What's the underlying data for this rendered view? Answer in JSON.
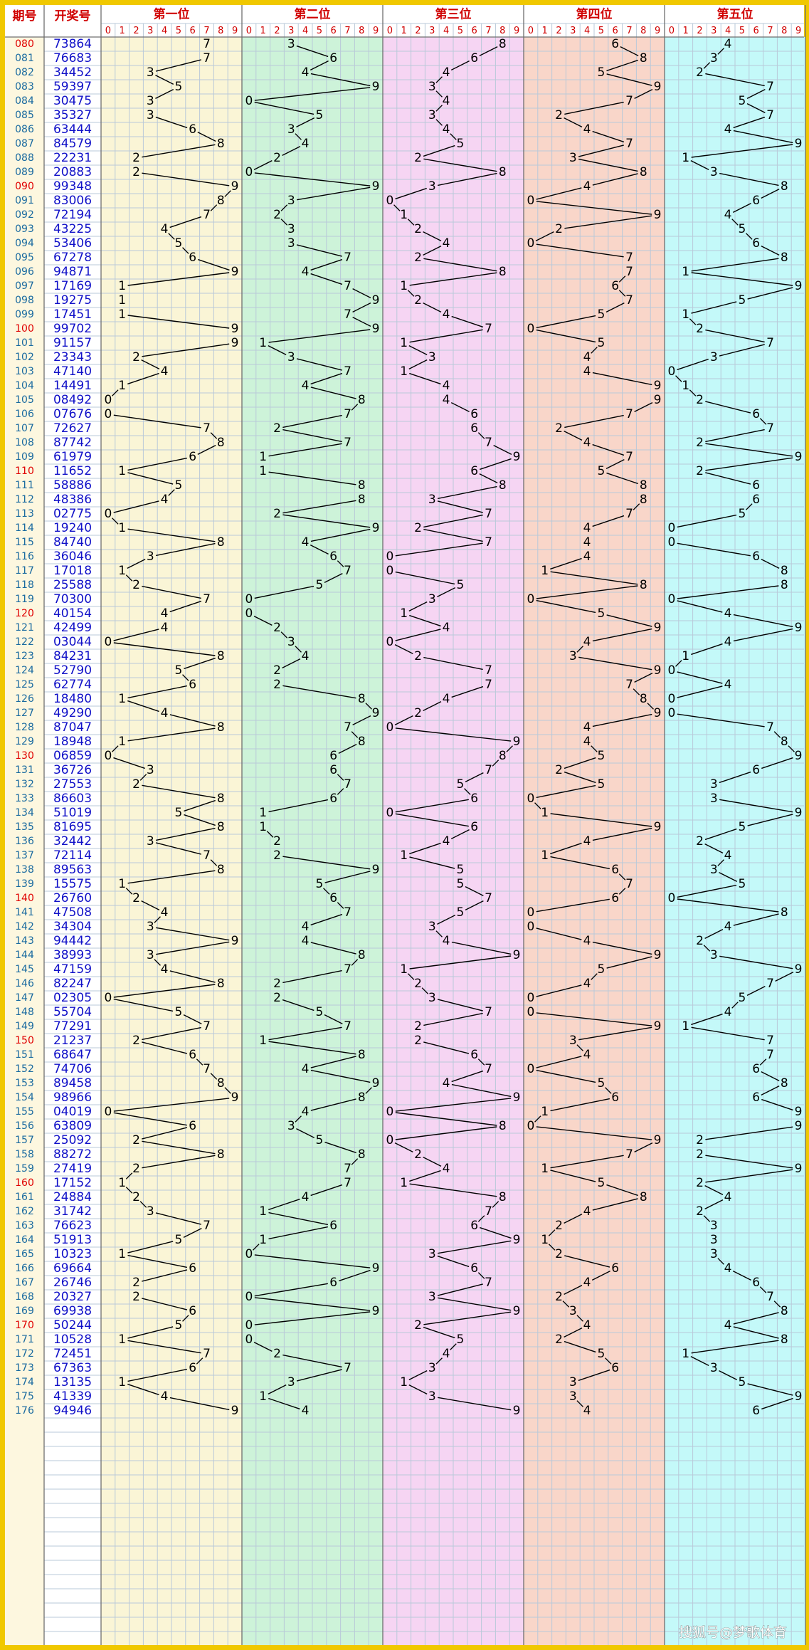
{
  "header": {
    "issue": "期号",
    "number": "开奖号",
    "panels": [
      "第一位",
      "第二位",
      "第三位",
      "第四位",
      "第五位"
    ],
    "digits": [
      0,
      1,
      2,
      3,
      4,
      5,
      6,
      7,
      8,
      9
    ]
  },
  "panel_colors": [
    "#faf5d6",
    "#cdf3d9",
    "#f6d5f3",
    "#f9d6c9",
    "#c4f9f9"
  ],
  "line_color": "#000000",
  "number_color": "#1010c8",
  "highlight_color": "#e00000",
  "rows": [
    {
      "issue": "080",
      "number": "73864",
      "digits": [
        7,
        3,
        8,
        6,
        4
      ]
    },
    {
      "issue": "081",
      "number": "76683",
      "digits": [
        7,
        6,
        6,
        8,
        3
      ]
    },
    {
      "issue": "082",
      "number": "34452",
      "digits": [
        3,
        4,
        4,
        5,
        2
      ]
    },
    {
      "issue": "083",
      "number": "59397",
      "digits": [
        5,
        9,
        3,
        9,
        7
      ]
    },
    {
      "issue": "084",
      "number": "30475",
      "digits": [
        3,
        0,
        4,
        7,
        5
      ]
    },
    {
      "issue": "085",
      "number": "35327",
      "digits": [
        3,
        5,
        3,
        2,
        7
      ]
    },
    {
      "issue": "086",
      "number": "63444",
      "digits": [
        6,
        3,
        4,
        4,
        4
      ]
    },
    {
      "issue": "087",
      "number": "84579",
      "digits": [
        8,
        4,
        5,
        7,
        9
      ]
    },
    {
      "issue": "088",
      "number": "22231",
      "digits": [
        2,
        2,
        2,
        3,
        1
      ]
    },
    {
      "issue": "089",
      "number": "20883",
      "digits": [
        2,
        0,
        8,
        8,
        3
      ]
    },
    {
      "issue": "090",
      "number": "99348",
      "digits": [
        9,
        9,
        3,
        4,
        8
      ]
    },
    {
      "issue": "091",
      "number": "83006",
      "digits": [
        8,
        3,
        0,
        0,
        6
      ]
    },
    {
      "issue": "092",
      "number": "72194",
      "digits": [
        7,
        2,
        1,
        9,
        4
      ]
    },
    {
      "issue": "093",
      "number": "43225",
      "digits": [
        4,
        3,
        2,
        2,
        5
      ]
    },
    {
      "issue": "094",
      "number": "53406",
      "digits": [
        5,
        3,
        4,
        0,
        6
      ]
    },
    {
      "issue": "095",
      "number": "67278",
      "digits": [
        6,
        7,
        2,
        7,
        8
      ]
    },
    {
      "issue": "096",
      "number": "94871",
      "digits": [
        9,
        4,
        8,
        7,
        1
      ]
    },
    {
      "issue": "097",
      "number": "17169",
      "digits": [
        1,
        7,
        1,
        6,
        9
      ]
    },
    {
      "issue": "098",
      "number": "19275",
      "digits": [
        1,
        9,
        2,
        7,
        5
      ]
    },
    {
      "issue": "099",
      "number": "17451",
      "digits": [
        1,
        7,
        4,
        5,
        1
      ]
    },
    {
      "issue": "100",
      "number": "99702",
      "digits": [
        9,
        9,
        7,
        0,
        2
      ]
    },
    {
      "issue": "101",
      "number": "91157",
      "digits": [
        9,
        1,
        1,
        5,
        7
      ]
    },
    {
      "issue": "102",
      "number": "23343",
      "digits": [
        2,
        3,
        3,
        4,
        3
      ]
    },
    {
      "issue": "103",
      "number": "47140",
      "digits": [
        4,
        7,
        1,
        4,
        0
      ]
    },
    {
      "issue": "104",
      "number": "14491",
      "digits": [
        1,
        4,
        4,
        9,
        1
      ]
    },
    {
      "issue": "105",
      "number": "08492",
      "digits": [
        0,
        8,
        4,
        9,
        2
      ]
    },
    {
      "issue": "106",
      "number": "07676",
      "digits": [
        0,
        7,
        6,
        7,
        6
      ]
    },
    {
      "issue": "107",
      "number": "72627",
      "digits": [
        7,
        2,
        6,
        2,
        7
      ]
    },
    {
      "issue": "108",
      "number": "87742",
      "digits": [
        8,
        7,
        7,
        4,
        2
      ]
    },
    {
      "issue": "109",
      "number": "61979",
      "digits": [
        6,
        1,
        9,
        7,
        9
      ]
    },
    {
      "issue": "110",
      "number": "11652",
      "digits": [
        1,
        1,
        6,
        5,
        2
      ]
    },
    {
      "issue": "111",
      "number": "58886",
      "digits": [
        5,
        8,
        8,
        8,
        6
      ]
    },
    {
      "issue": "112",
      "number": "48386",
      "digits": [
        4,
        8,
        3,
        8,
        6
      ]
    },
    {
      "issue": "113",
      "number": "02775",
      "digits": [
        0,
        2,
        7,
        7,
        5
      ]
    },
    {
      "issue": "114",
      "number": "19240",
      "digits": [
        1,
        9,
        2,
        4,
        0
      ]
    },
    {
      "issue": "115",
      "number": "84740",
      "digits": [
        8,
        4,
        7,
        4,
        0
      ]
    },
    {
      "issue": "116",
      "number": "36046",
      "digits": [
        3,
        6,
        0,
        4,
        6
      ]
    },
    {
      "issue": "117",
      "number": "17018",
      "digits": [
        1,
        7,
        0,
        1,
        8
      ]
    },
    {
      "issue": "118",
      "number": "25588",
      "digits": [
        2,
        5,
        5,
        8,
        8
      ]
    },
    {
      "issue": "119",
      "number": "70300",
      "digits": [
        7,
        0,
        3,
        0,
        0
      ]
    },
    {
      "issue": "120",
      "number": "40154",
      "digits": [
        4,
        0,
        1,
        5,
        4
      ]
    },
    {
      "issue": "121",
      "number": "42499",
      "digits": [
        4,
        2,
        4,
        9,
        9
      ]
    },
    {
      "issue": "122",
      "number": "03044",
      "digits": [
        0,
        3,
        0,
        4,
        4
      ]
    },
    {
      "issue": "123",
      "number": "84231",
      "digits": [
        8,
        4,
        2,
        3,
        1
      ]
    },
    {
      "issue": "124",
      "number": "52790",
      "digits": [
        5,
        2,
        7,
        9,
        0
      ]
    },
    {
      "issue": "125",
      "number": "62774",
      "digits": [
        6,
        2,
        7,
        7,
        4
      ]
    },
    {
      "issue": "126",
      "number": "18480",
      "digits": [
        1,
        8,
        4,
        8,
        0
      ]
    },
    {
      "issue": "127",
      "number": "49290",
      "digits": [
        4,
        9,
        2,
        9,
        0
      ]
    },
    {
      "issue": "128",
      "number": "87047",
      "digits": [
        8,
        7,
        0,
        4,
        7
      ]
    },
    {
      "issue": "129",
      "number": "18948",
      "digits": [
        1,
        8,
        9,
        4,
        8
      ]
    },
    {
      "issue": "130",
      "number": "06859",
      "digits": [
        0,
        6,
        8,
        5,
        9
      ]
    },
    {
      "issue": "131",
      "number": "36726",
      "digits": [
        3,
        6,
        7,
        2,
        6
      ]
    },
    {
      "issue": "132",
      "number": "27553",
      "digits": [
        2,
        7,
        5,
        5,
        3
      ]
    },
    {
      "issue": "133",
      "number": "86603",
      "digits": [
        8,
        6,
        6,
        0,
        3
      ]
    },
    {
      "issue": "134",
      "number": "51019",
      "digits": [
        5,
        1,
        0,
        1,
        9
      ]
    },
    {
      "issue": "135",
      "number": "81695",
      "digits": [
        8,
        1,
        6,
        9,
        5
      ]
    },
    {
      "issue": "136",
      "number": "32442",
      "digits": [
        3,
        2,
        4,
        4,
        2
      ]
    },
    {
      "issue": "137",
      "number": "72114",
      "digits": [
        7,
        2,
        1,
        1,
        4
      ]
    },
    {
      "issue": "138",
      "number": "89563",
      "digits": [
        8,
        9,
        5,
        6,
        3
      ]
    },
    {
      "issue": "139",
      "number": "15575",
      "digits": [
        1,
        5,
        5,
        7,
        5
      ]
    },
    {
      "issue": "140",
      "number": "26760",
      "digits": [
        2,
        6,
        7,
        6,
        0
      ]
    },
    {
      "issue": "141",
      "number": "47508",
      "digits": [
        4,
        7,
        5,
        0,
        8
      ]
    },
    {
      "issue": "142",
      "number": "34304",
      "digits": [
        3,
        4,
        3,
        0,
        4
      ]
    },
    {
      "issue": "143",
      "number": "94442",
      "digits": [
        9,
        4,
        4,
        4,
        2
      ]
    },
    {
      "issue": "144",
      "number": "38993",
      "digits": [
        3,
        8,
        9,
        9,
        3
      ]
    },
    {
      "issue": "145",
      "number": "47159",
      "digits": [
        4,
        7,
        1,
        5,
        9
      ]
    },
    {
      "issue": "146",
      "number": "82247",
      "digits": [
        8,
        2,
        2,
        4,
        7
      ]
    },
    {
      "issue": "147",
      "number": "02305",
      "digits": [
        0,
        2,
        3,
        0,
        5
      ]
    },
    {
      "issue": "148",
      "number": "55704",
      "digits": [
        5,
        5,
        7,
        0,
        4
      ]
    },
    {
      "issue": "149",
      "number": "77291",
      "digits": [
        7,
        7,
        2,
        9,
        1
      ]
    },
    {
      "issue": "150",
      "number": "21237",
      "digits": [
        2,
        1,
        2,
        3,
        7
      ]
    },
    {
      "issue": "151",
      "number": "68647",
      "digits": [
        6,
        8,
        6,
        4,
        7
      ]
    },
    {
      "issue": "152",
      "number": "74706",
      "digits": [
        7,
        4,
        7,
        0,
        6
      ]
    },
    {
      "issue": "153",
      "number": "89458",
      "digits": [
        8,
        9,
        4,
        5,
        8
      ]
    },
    {
      "issue": "154",
      "number": "98966",
      "digits": [
        9,
        8,
        9,
        6,
        6
      ]
    },
    {
      "issue": "155",
      "number": "04019",
      "digits": [
        0,
        4,
        0,
        1,
        9
      ]
    },
    {
      "issue": "156",
      "number": "63809",
      "digits": [
        6,
        3,
        8,
        0,
        9
      ]
    },
    {
      "issue": "157",
      "number": "25092",
      "digits": [
        2,
        5,
        0,
        9,
        2
      ]
    },
    {
      "issue": "158",
      "number": "88272",
      "digits": [
        8,
        8,
        2,
        7,
        2
      ]
    },
    {
      "issue": "159",
      "number": "27419",
      "digits": [
        2,
        7,
        4,
        1,
        9
      ]
    },
    {
      "issue": "160",
      "number": "17152",
      "digits": [
        1,
        7,
        1,
        5,
        2
      ]
    },
    {
      "issue": "161",
      "number": "24884",
      "digits": [
        2,
        4,
        8,
        8,
        4
      ]
    },
    {
      "issue": "162",
      "number": "31742",
      "digits": [
        3,
        1,
        7,
        4,
        2
      ]
    },
    {
      "issue": "163",
      "number": "76623",
      "digits": [
        7,
        6,
        6,
        2,
        3
      ]
    },
    {
      "issue": "164",
      "number": "51913",
      "digits": [
        5,
        1,
        9,
        1,
        3
      ]
    },
    {
      "issue": "165",
      "number": "10323",
      "digits": [
        1,
        0,
        3,
        2,
        3
      ]
    },
    {
      "issue": "166",
      "number": "69664",
      "digits": [
        6,
        9,
        6,
        6,
        4
      ]
    },
    {
      "issue": "167",
      "number": "26746",
      "digits": [
        2,
        6,
        7,
        4,
        6
      ]
    },
    {
      "issue": "168",
      "number": "20327",
      "digits": [
        2,
        0,
        3,
        2,
        7
      ]
    },
    {
      "issue": "169",
      "number": "69938",
      "digits": [
        6,
        9,
        9,
        3,
        8
      ]
    },
    {
      "issue": "170",
      "number": "50244",
      "digits": [
        5,
        0,
        2,
        4,
        4
      ]
    },
    {
      "issue": "171",
      "number": "10528",
      "digits": [
        1,
        0,
        5,
        2,
        8
      ]
    },
    {
      "issue": "172",
      "number": "72451",
      "digits": [
        7,
        2,
        4,
        5,
        1
      ]
    },
    {
      "issue": "173",
      "number": "67363",
      "digits": [
        6,
        7,
        3,
        6,
        3
      ]
    },
    {
      "issue": "174",
      "number": "13135",
      "digits": [
        1,
        3,
        1,
        3,
        5
      ]
    },
    {
      "issue": "175",
      "number": "41339",
      "digits": [
        4,
        1,
        3,
        3,
        9
      ]
    },
    {
      "issue": "176",
      "number": "94946",
      "digits": [
        9,
        4,
        9,
        4,
        6
      ]
    }
  ],
  "watermark": "搜狐号@梦歌体育"
}
